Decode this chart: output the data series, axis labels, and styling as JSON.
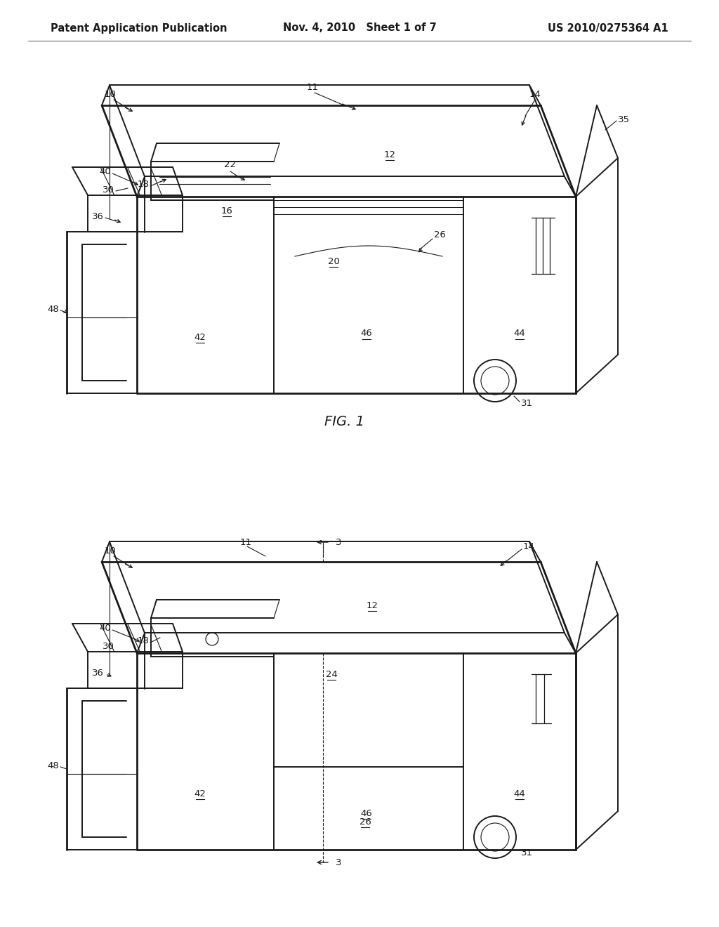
{
  "bg_color": "#ffffff",
  "line_color": "#1a1a1a",
  "fig_width": 10.24,
  "fig_height": 13.2,
  "header_left": "Patent Application Publication",
  "header_center": "Nov. 4, 2010   Sheet 1 of 7",
  "header_right": "US 2010/0275364 A1",
  "header_fontsize": 10.5
}
